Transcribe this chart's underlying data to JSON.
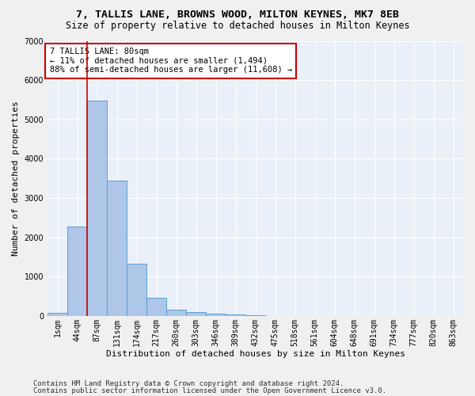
{
  "title": "7, TALLIS LANE, BROWNS WOOD, MILTON KEYNES, MK7 8EB",
  "subtitle": "Size of property relative to detached houses in Milton Keynes",
  "xlabel": "Distribution of detached houses by size in Milton Keynes",
  "ylabel": "Number of detached properties",
  "footnote1": "Contains HM Land Registry data © Crown copyright and database right 2024.",
  "footnote2": "Contains public sector information licensed under the Open Government Licence v3.0.",
  "annotation_title": "7 TALLIS LANE: 80sqm",
  "annotation_line1": "← 11% of detached houses are smaller (1,494)",
  "annotation_line2": "88% of semi-detached houses are larger (11,608) →",
  "bar_labels": [
    "1sqm",
    "44sqm",
    "87sqm",
    "131sqm",
    "174sqm",
    "217sqm",
    "260sqm",
    "303sqm",
    "346sqm",
    "389sqm",
    "432sqm",
    "475sqm",
    "518sqm",
    "561sqm",
    "604sqm",
    "648sqm",
    "691sqm",
    "734sqm",
    "777sqm",
    "820sqm",
    "863sqm"
  ],
  "bar_values": [
    80,
    2270,
    5480,
    3450,
    1320,
    470,
    160,
    90,
    60,
    30,
    10,
    5,
    2,
    1,
    0,
    0,
    0,
    0,
    0,
    0,
    0
  ],
  "bar_color": "#aec6e8",
  "bar_edge_color": "#5a9fd4",
  "marker_bar_index": 2,
  "marker_color": "#cc0000",
  "ylim": [
    0,
    7000
  ],
  "yticks": [
    0,
    1000,
    2000,
    3000,
    4000,
    5000,
    6000,
    7000
  ],
  "annotation_box_color": "#ffffff",
  "annotation_box_edge": "#cc0000",
  "bg_color": "#eaf0f8",
  "grid_color": "#ffffff",
  "fig_bg_color": "#f0f0f0",
  "title_fontsize": 9.5,
  "subtitle_fontsize": 8.5,
  "axis_label_fontsize": 8,
  "tick_fontsize": 7,
  "annotation_fontsize": 7.5,
  "footnote_fontsize": 6.5
}
